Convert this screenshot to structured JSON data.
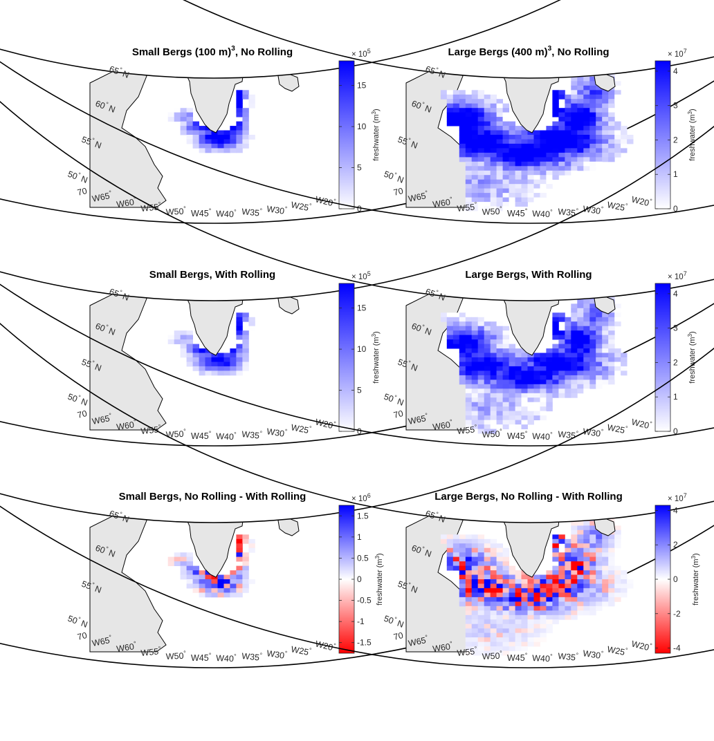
{
  "figure": {
    "colorbar_title": "freshwater (m",
    "colorbar_title_sup": "3",
    "colorbar_title_end": ")",
    "lat_labels": [
      "50",
      "55",
      "60",
      "65"
    ],
    "lon_labels": [
      "70",
      "W65",
      "W60",
      "W55",
      "W50",
      "W45",
      "W40",
      "W35",
      "W30",
      "W25",
      "W20"
    ],
    "colors": {
      "land": "#e6e6e6",
      "positive": "#0000ff",
      "negative": "#ff0000",
      "neutral": "#ffffff"
    }
  },
  "chart_data": [
    {
      "type": "heatmap",
      "title": "Small Bergs (100 m)",
      "title_sup": "3",
      "title_end": ", No Rolling",
      "colorbar": {
        "multiplier": "× 10",
        "exponent": "5",
        "ticks": [
          "0",
          "5",
          "10",
          "15"
        ],
        "tick_values": [
          0,
          5,
          10,
          15
        ],
        "clim": [
          0,
          18
        ],
        "colormap": "white-blue"
      },
      "pattern": "small"
    },
    {
      "type": "heatmap",
      "title": "Large Bergs (400 m)",
      "title_sup": "3",
      "title_end": ", No Rolling",
      "colorbar": {
        "multiplier": "× 10",
        "exponent": "7",
        "ticks": [
          "0",
          "1",
          "2",
          "3",
          "4"
        ],
        "tick_values": [
          0,
          1,
          2,
          3,
          4
        ],
        "clim": [
          0,
          4.3
        ],
        "colormap": "white-blue"
      },
      "pattern": "large"
    },
    {
      "type": "heatmap",
      "title": "Small Bergs, With Rolling",
      "title_sup": "",
      "title_end": "",
      "colorbar": {
        "multiplier": "× 10",
        "exponent": "5",
        "ticks": [
          "0",
          "5",
          "10",
          "15"
        ],
        "tick_values": [
          0,
          5,
          10,
          15
        ],
        "clim": [
          0,
          18
        ],
        "colormap": "white-blue"
      },
      "pattern": "small-roll"
    },
    {
      "type": "heatmap",
      "title": "Large Bergs, With Rolling",
      "title_sup": "",
      "title_end": "",
      "colorbar": {
        "multiplier": "× 10",
        "exponent": "7",
        "ticks": [
          "0",
          "1",
          "2",
          "3",
          "4"
        ],
        "tick_values": [
          0,
          1,
          2,
          3,
          4
        ],
        "clim": [
          0,
          4.3
        ],
        "colormap": "white-blue"
      },
      "pattern": "large-roll"
    },
    {
      "type": "heatmap",
      "title": "Small Bergs, No Rolling - With Rolling",
      "title_sup": "",
      "title_end": "",
      "colorbar": {
        "multiplier": "× 10",
        "exponent": "6",
        "ticks": [
          "-1.5",
          "-1",
          "-0.5",
          "0",
          "0.5",
          "1",
          "1.5"
        ],
        "tick_values": [
          -1.5,
          -1,
          -0.5,
          0,
          0.5,
          1,
          1.5
        ],
        "clim": [
          -1.75,
          1.75
        ],
        "colormap": "red-white-blue"
      },
      "pattern": "small-diff"
    },
    {
      "type": "heatmap",
      "title": "Large Bergs, No Rolling - With Rolling",
      "title_sup": "",
      "title_end": "",
      "colorbar": {
        "multiplier": "× 10",
        "exponent": "7",
        "ticks": [
          "-4",
          "-2",
          "0",
          "2",
          "4"
        ],
        "tick_values": [
          -4,
          -2,
          0,
          2,
          4
        ],
        "clim": [
          -4.3,
          4.3
        ],
        "colormap": "red-white-blue"
      },
      "pattern": "large-diff"
    }
  ]
}
